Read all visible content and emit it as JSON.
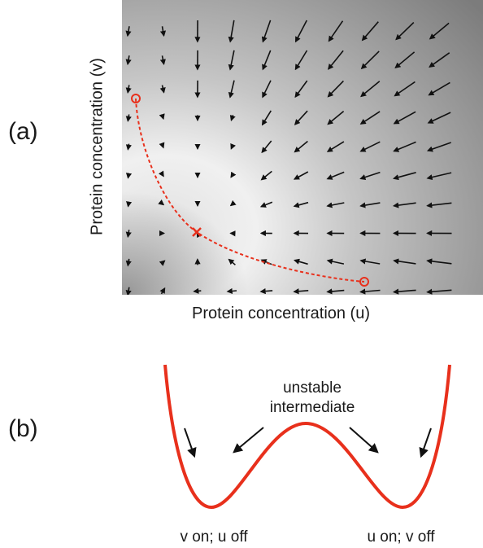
{
  "panel_a": {
    "label": "(a)",
    "xlabel": "Protein concentration  (u)",
    "ylabel": "Protein concentration  (v)",
    "stable_marker": "stable-state-circle",
    "unstable_marker": "saddle-point-x",
    "trajectory_color": "#e8301c"
  },
  "panel_b": {
    "label": "(b)",
    "top_label_line1": "unstable",
    "top_label_line2": "intermediate",
    "left_well_label": "v on; u off",
    "right_well_label": "u on; v off",
    "curve_color": "#e8301c"
  }
}
